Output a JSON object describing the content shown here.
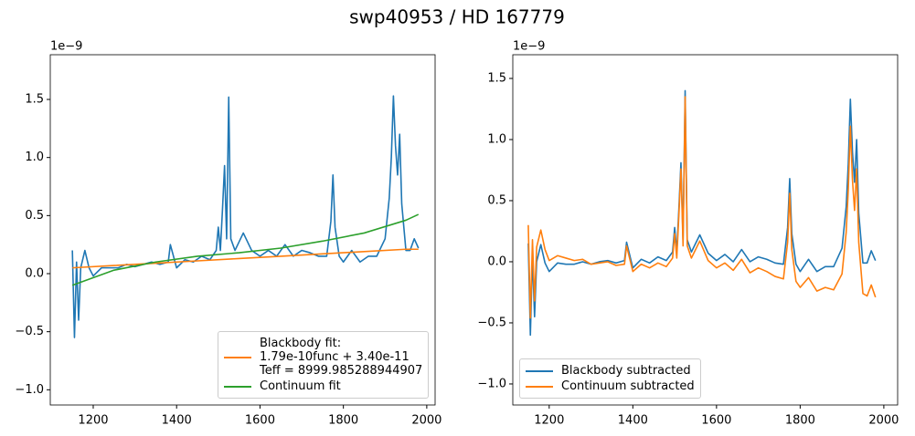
{
  "title": "swp40953 / HD 167779",
  "chart_data": [
    {
      "type": "line",
      "offset_label": "1e−9",
      "xlim": [
        1097,
        2020
      ],
      "ylim": [
        -1.131,
        1.885
      ],
      "xticks": [
        1200,
        1400,
        1600,
        1800,
        2000
      ],
      "yticks": [
        {
          "value": -1.0,
          "label": "−1.0"
        },
        {
          "value": -0.5,
          "label": "−0.5"
        },
        {
          "value": 0.0,
          "label": "0.0"
        },
        0.5,
        {
          "value": 1.0,
          "label": "1.0"
        },
        1.5
      ],
      "legend_loc": "lower right",
      "series": [
        {
          "color": "#1f77b4",
          "x": [
            1150,
            1155,
            1160,
            1165,
            1170,
            1180,
            1190,
            1200,
            1220,
            1240,
            1260,
            1280,
            1300,
            1320,
            1340,
            1360,
            1380,
            1385,
            1400,
            1420,
            1440,
            1460,
            1480,
            1495,
            1500,
            1505,
            1510,
            1515,
            1520,
            1525,
            1530,
            1540,
            1560,
            1580,
            1600,
            1620,
            1640,
            1660,
            1680,
            1700,
            1720,
            1740,
            1760,
            1770,
            1775,
            1780,
            1790,
            1800,
            1820,
            1840,
            1860,
            1880,
            1900,
            1910,
            1915,
            1920,
            1925,
            1930,
            1935,
            1940,
            1950,
            1960,
            1970,
            1980
          ],
          "values": [
            0.2,
            -0.55,
            0.1,
            -0.4,
            0.05,
            0.2,
            0.05,
            -0.02,
            0.05,
            0.05,
            0.05,
            0.08,
            0.06,
            0.08,
            0.1,
            0.08,
            0.1,
            0.25,
            0.05,
            0.12,
            0.1,
            0.15,
            0.12,
            0.2,
            0.4,
            0.2,
            0.55,
            0.93,
            0.3,
            1.52,
            0.3,
            0.2,
            0.35,
            0.2,
            0.15,
            0.2,
            0.15,
            0.25,
            0.15,
            0.2,
            0.18,
            0.15,
            0.15,
            0.45,
            0.85,
            0.4,
            0.15,
            0.1,
            0.2,
            0.1,
            0.15,
            0.15,
            0.3,
            0.65,
            1.0,
            1.53,
            1.1,
            0.85,
            1.2,
            0.6,
            0.2,
            0.2,
            0.3,
            0.22
          ]
        },
        {
          "name": "Blackbody fit:\n1.79e-10func + 3.40e-11\nTeff = 8999.985288944907",
          "color": "#ff7f0e",
          "x": [
            1150,
            1250,
            1350,
            1450,
            1550,
            1650,
            1750,
            1850,
            1950,
            1980
          ],
          "values": [
            0.05,
            0.07,
            0.09,
            0.11,
            0.13,
            0.15,
            0.17,
            0.19,
            0.21,
            0.21
          ]
        },
        {
          "name": "Continuum fit",
          "color": "#2ca02c",
          "x": [
            1150,
            1250,
            1350,
            1450,
            1550,
            1650,
            1750,
            1850,
            1950,
            1980
          ],
          "values": [
            -0.1,
            0.03,
            0.1,
            0.15,
            0.18,
            0.22,
            0.28,
            0.35,
            0.46,
            0.51
          ]
        }
      ]
    },
    {
      "type": "line",
      "offset_label": "1e−9",
      "xlim": [
        1113,
        2033
      ],
      "ylim": [
        -1.172,
        1.694
      ],
      "xticks": [
        1200,
        1400,
        1600,
        1800,
        2000
      ],
      "yticks": [
        {
          "value": -1.0,
          "label": "−1.0"
        },
        {
          "value": -0.5,
          "label": "−0.5"
        },
        {
          "value": 0.0,
          "label": "0.0"
        },
        0.5,
        {
          "value": 1.0,
          "label": "1.0"
        },
        1.5
      ],
      "legend_loc": "lower left",
      "series": [
        {
          "name": "Blackbody subtracted",
          "color": "#1f77b4",
          "x": [
            1150,
            1155,
            1160,
            1165,
            1170,
            1180,
            1190,
            1200,
            1220,
            1240,
            1260,
            1280,
            1300,
            1320,
            1340,
            1360,
            1380,
            1385,
            1400,
            1420,
            1440,
            1460,
            1480,
            1495,
            1500,
            1505,
            1510,
            1515,
            1520,
            1525,
            1530,
            1540,
            1560,
            1580,
            1600,
            1620,
            1640,
            1660,
            1680,
            1700,
            1720,
            1740,
            1760,
            1770,
            1775,
            1780,
            1790,
            1800,
            1820,
            1840,
            1860,
            1880,
            1900,
            1910,
            1915,
            1920,
            1925,
            1930,
            1935,
            1940,
            1950,
            1960,
            1970,
            1980
          ],
          "values": [
            0.15,
            -0.6,
            0.05,
            -0.45,
            0.0,
            0.14,
            -0.01,
            -0.08,
            -0.01,
            -0.02,
            -0.02,
            0.0,
            -0.02,
            0.0,
            0.01,
            -0.01,
            0.01,
            0.16,
            -0.05,
            0.02,
            -0.01,
            0.04,
            0.01,
            0.08,
            0.28,
            0.08,
            0.43,
            0.81,
            0.18,
            1.4,
            0.18,
            0.08,
            0.22,
            0.07,
            0.01,
            0.06,
            0.0,
            0.1,
            0.0,
            0.04,
            0.02,
            -0.01,
            -0.02,
            0.28,
            0.68,
            0.23,
            -0.02,
            -0.08,
            0.02,
            -0.08,
            -0.04,
            -0.04,
            0.11,
            0.45,
            0.8,
            1.33,
            0.9,
            0.65,
            1.0,
            0.4,
            -0.01,
            -0.01,
            0.09,
            0.01
          ]
        },
        {
          "name": "Continuum subtracted",
          "color": "#ff7f0e",
          "x": [
            1150,
            1155,
            1160,
            1165,
            1170,
            1180,
            1190,
            1200,
            1220,
            1240,
            1260,
            1280,
            1300,
            1320,
            1340,
            1360,
            1380,
            1385,
            1400,
            1420,
            1440,
            1460,
            1480,
            1495,
            1500,
            1505,
            1510,
            1515,
            1520,
            1525,
            1530,
            1540,
            1560,
            1580,
            1600,
            1620,
            1640,
            1660,
            1680,
            1700,
            1720,
            1740,
            1760,
            1770,
            1775,
            1780,
            1790,
            1800,
            1820,
            1840,
            1860,
            1880,
            1900,
            1910,
            1915,
            1920,
            1925,
            1930,
            1935,
            1940,
            1950,
            1960,
            1970,
            1980
          ],
          "values": [
            0.3,
            -0.46,
            0.18,
            -0.32,
            0.12,
            0.26,
            0.1,
            0.01,
            0.05,
            0.03,
            0.01,
            0.02,
            -0.02,
            -0.01,
            0.0,
            -0.03,
            -0.02,
            0.13,
            -0.08,
            -0.02,
            -0.05,
            -0.01,
            -0.04,
            0.03,
            0.23,
            0.03,
            0.38,
            0.76,
            0.13,
            1.35,
            0.13,
            0.03,
            0.17,
            0.01,
            -0.05,
            -0.01,
            -0.07,
            0.02,
            -0.09,
            -0.05,
            -0.08,
            -0.12,
            -0.14,
            0.16,
            0.56,
            0.1,
            -0.16,
            -0.21,
            -0.13,
            -0.24,
            -0.21,
            -0.23,
            -0.1,
            0.24,
            0.59,
            1.11,
            0.67,
            0.42,
            0.76,
            0.16,
            -0.26,
            -0.28,
            -0.19,
            -0.29
          ]
        }
      ]
    }
  ]
}
